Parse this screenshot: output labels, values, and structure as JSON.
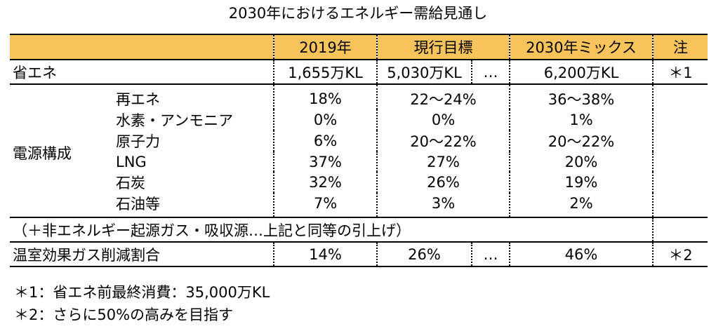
{
  "title": "2030年におけるエネルギー需給見通し",
  "header": {
    "col_2019": "2019年",
    "col_current": "現行目標",
    "col_2030": "2030年ミックス",
    "col_note": "注"
  },
  "energy_saving": {
    "label": "省エネ",
    "v2019": "1,655万KL",
    "current": "5,030万KL",
    "ellipsis": "…",
    "v2030": "6,200万KL",
    "note": "＊1"
  },
  "power": {
    "group_label": "電源構成",
    "rows": [
      {
        "label": "再エネ",
        "v2019": "18%",
        "current": "22～24%",
        "v2030": "36～38%"
      },
      {
        "label": "水素・アンモニア",
        "v2019": "0%",
        "current": "0%",
        "v2030": "1%"
      },
      {
        "label": "原子力",
        "v2019": "6%",
        "current": "20～22%",
        "v2030": "20～22%"
      },
      {
        "label": "LNG",
        "v2019": "37%",
        "current": "27%",
        "v2030": "20%"
      },
      {
        "label": "石炭",
        "v2019": "32%",
        "current": "26%",
        "v2030": "19%"
      },
      {
        "label": "石油等",
        "v2019": "7%",
        "current": "3%",
        "v2030": "2%"
      }
    ]
  },
  "non_energy": {
    "text": "（＋非エネルギー起源ガス・吸収源…上記と同等の引上げ）"
  },
  "ghg": {
    "label": "温室効果ガス削減割合",
    "v2019": "14%",
    "current": "26%",
    "ellipsis": "…",
    "v2030": "46%",
    "note": "＊2"
  },
  "notes": [
    "＊1：省エネ前最終消費：35,000万KL",
    "＊2：さらに50%の高みを目指す"
  ]
}
